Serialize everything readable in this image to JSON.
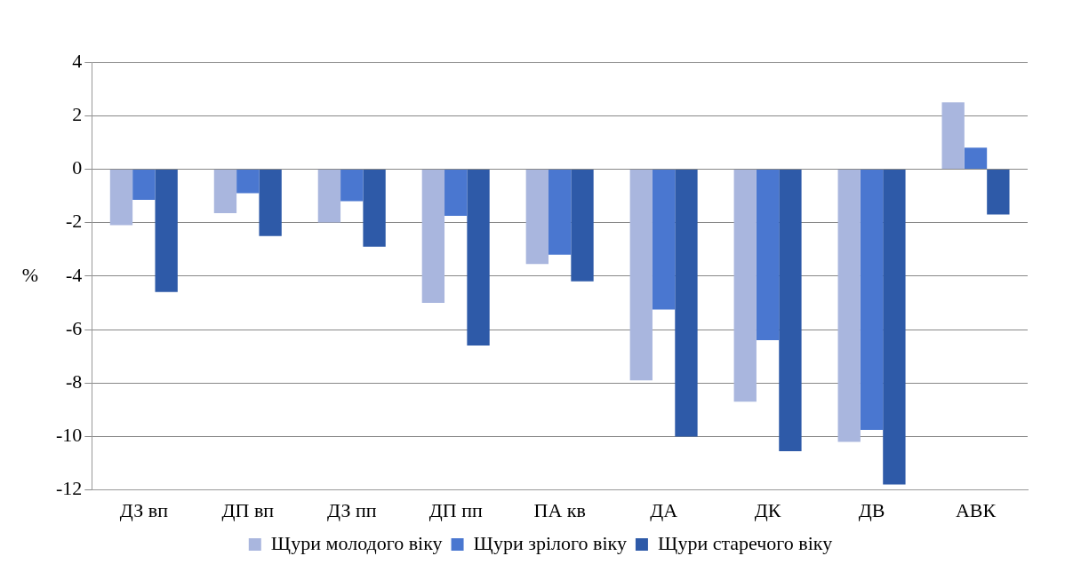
{
  "chart_data": {
    "type": "bar",
    "ylabel": "%",
    "categories": [
      "ДЗ вп",
      "ДП вп",
      "ДЗ пп",
      "ДП пп",
      "ПА кв",
      "ДА",
      "ДК",
      "ДВ",
      "АВК"
    ],
    "series": [
      {
        "name": "Щури молодого віку",
        "color": "#a9b6de",
        "values": [
          -2.1,
          -1.65,
          -2.0,
          -5.0,
          -3.55,
          -7.9,
          -8.7,
          -10.2,
          2.5
        ]
      },
      {
        "name": "Щури зрілого віку",
        "color": "#4a77d0",
        "values": [
          -1.15,
          -0.9,
          -1.2,
          -1.75,
          -3.2,
          -5.25,
          -6.4,
          -9.75,
          0.8
        ]
      },
      {
        "name": "Щури старечого віку",
        "color": "#2e5aa8",
        "values": [
          -4.6,
          -2.5,
          -2.9,
          -6.6,
          -4.2,
          -10.0,
          -10.55,
          -11.8,
          -1.7
        ]
      }
    ],
    "ylim": [
      -12,
      4
    ],
    "yticks": [
      -12,
      -10,
      -8,
      -6,
      -4,
      -2,
      0,
      2,
      4
    ],
    "grid": "y",
    "legend": "bottom"
  }
}
